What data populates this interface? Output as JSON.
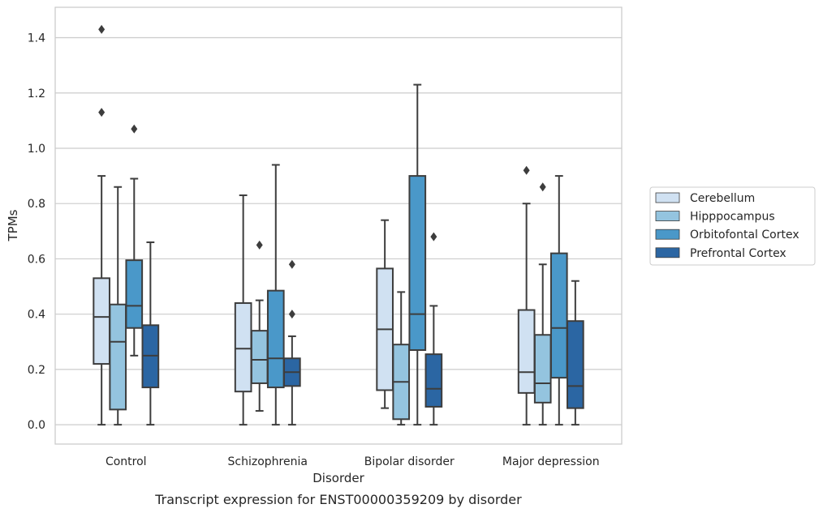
{
  "chart_data": {
    "type": "box",
    "caption": "Transcript expression for ENST00000359209 by disorder",
    "xlabel": "Disorder",
    "ylabel": "TPMs",
    "ylim": [
      -0.07,
      1.51
    ],
    "yticks": [
      0.0,
      0.2,
      0.4,
      0.6,
      0.8,
      1.0,
      1.2,
      1.4
    ],
    "ytick_labels": [
      "0.0",
      "0.2",
      "0.4",
      "0.6",
      "0.8",
      "1.0",
      "1.2",
      "1.4"
    ],
    "grid": true,
    "legend_position": "right",
    "categories": [
      "Control",
      "Schizophrenia",
      "Bipolar disorder",
      "Major depression"
    ],
    "series": [
      {
        "name": "Cerebellum",
        "color": "#d0e1f2",
        "boxes": [
          {
            "whisker_low": 0.0,
            "q1": 0.22,
            "median": 0.39,
            "q3": 0.53,
            "whisker_high": 0.9,
            "outliers": [
              1.13,
              1.43
            ]
          },
          {
            "whisker_low": 0.0,
            "q1": 0.12,
            "median": 0.275,
            "q3": 0.44,
            "whisker_high": 0.83,
            "outliers": []
          },
          {
            "whisker_low": 0.06,
            "q1": 0.125,
            "median": 0.345,
            "q3": 0.565,
            "whisker_high": 0.74,
            "outliers": []
          },
          {
            "whisker_low": 0.0,
            "q1": 0.115,
            "median": 0.19,
            "q3": 0.415,
            "whisker_high": 0.8,
            "outliers": [
              0.92
            ]
          }
        ]
      },
      {
        "name": "Hipppocampus",
        "color": "#94c4df",
        "boxes": [
          {
            "whisker_low": 0.0,
            "q1": 0.055,
            "median": 0.3,
            "q3": 0.435,
            "whisker_high": 0.86,
            "outliers": []
          },
          {
            "whisker_low": 0.05,
            "q1": 0.15,
            "median": 0.235,
            "q3": 0.34,
            "whisker_high": 0.45,
            "outliers": [
              0.65
            ]
          },
          {
            "whisker_low": 0.0,
            "q1": 0.02,
            "median": 0.155,
            "q3": 0.29,
            "whisker_high": 0.48,
            "outliers": []
          },
          {
            "whisker_low": 0.0,
            "q1": 0.08,
            "median": 0.15,
            "q3": 0.325,
            "whisker_high": 0.58,
            "outliers": [
              0.86
            ]
          }
        ]
      },
      {
        "name": "Orbitofontal Cortex",
        "color": "#4a98c9",
        "boxes": [
          {
            "whisker_low": 0.25,
            "q1": 0.35,
            "median": 0.43,
            "q3": 0.595,
            "whisker_high": 0.89,
            "outliers": [
              1.07
            ]
          },
          {
            "whisker_low": 0.0,
            "q1": 0.135,
            "median": 0.24,
            "q3": 0.485,
            "whisker_high": 0.94,
            "outliers": []
          },
          {
            "whisker_low": 0.0,
            "q1": 0.27,
            "median": 0.4,
            "q3": 0.9,
            "whisker_high": 1.23,
            "outliers": []
          },
          {
            "whisker_low": 0.0,
            "q1": 0.17,
            "median": 0.35,
            "q3": 0.62,
            "whisker_high": 0.9,
            "outliers": []
          }
        ]
      },
      {
        "name": "Prefrontal Cortex",
        "color": "#2b66a3",
        "boxes": [
          {
            "whisker_low": 0.0,
            "q1": 0.135,
            "median": 0.25,
            "q3": 0.36,
            "whisker_high": 0.66,
            "outliers": []
          },
          {
            "whisker_low": 0.0,
            "q1": 0.14,
            "median": 0.19,
            "q3": 0.24,
            "whisker_high": 0.32,
            "outliers": [
              0.4,
              0.58
            ]
          },
          {
            "whisker_low": 0.0,
            "q1": 0.065,
            "median": 0.13,
            "q3": 0.255,
            "whisker_high": 0.43,
            "outliers": [
              0.68
            ]
          },
          {
            "whisker_low": 0.0,
            "q1": 0.06,
            "median": 0.14,
            "q3": 0.375,
            "whisker_high": 0.52,
            "outliers": []
          }
        ]
      }
    ]
  }
}
